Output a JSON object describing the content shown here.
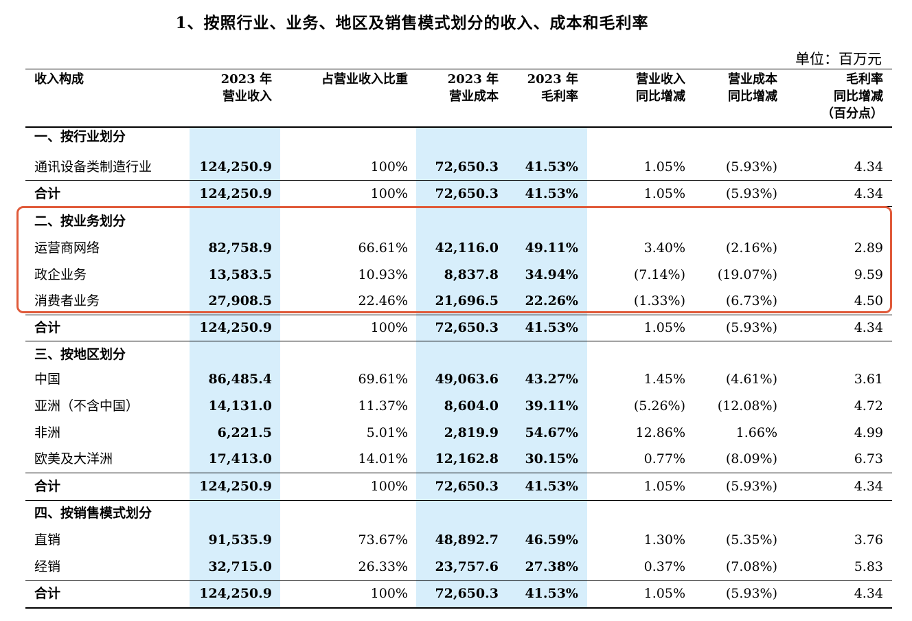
{
  "title": "1、按照行业、业务、地区及销售模式划分的收入、成本和毛利率",
  "unit": "单位：百万元",
  "headers": {
    "composition": "收入构成",
    "revenue": [
      "2023 年",
      "营业收入"
    ],
    "share": "占营业收入比重",
    "cost": [
      "2023 年",
      "营业成本"
    ],
    "margin": [
      "2023 年",
      "毛利率"
    ],
    "rev_yoy": [
      "营业收入",
      "同比增减"
    ],
    "cost_yoy": [
      "营业成本",
      "同比增减"
    ],
    "margin_yoy": [
      "毛利率",
      "同比增减",
      "（百分点）"
    ]
  },
  "rows": [
    {
      "type": "section",
      "label": "一、按行业划分"
    },
    {
      "type": "data",
      "label": "通讯设备类制造行业",
      "revenue": "124,250.9",
      "share": "100%",
      "cost": "72,650.3",
      "margin": "41.53%",
      "rev_yoy": "1.05%",
      "cost_yoy": "(5.93%)",
      "margin_yoy": "4.34"
    },
    {
      "type": "total",
      "label": "合计",
      "revenue": "124,250.9",
      "share": "100%",
      "cost": "72,650.3",
      "margin": "41.53%",
      "rev_yoy": "1.05%",
      "cost_yoy": "(5.93%)",
      "margin_yoy": "4.34"
    },
    {
      "type": "section",
      "label": "二、按业务划分"
    },
    {
      "type": "data",
      "label": "运营商网络",
      "revenue": "82,758.9",
      "share": "66.61%",
      "cost": "42,116.0",
      "margin": "49.11%",
      "rev_yoy": "3.40%",
      "cost_yoy": "(2.16%)",
      "margin_yoy": "2.89"
    },
    {
      "type": "data",
      "label": "政企业务",
      "revenue": "13,583.5",
      "share": "10.93%",
      "cost": "8,837.8",
      "margin": "34.94%",
      "rev_yoy": "(7.14%)",
      "cost_yoy": "(19.07%)",
      "margin_yoy": "9.59"
    },
    {
      "type": "data",
      "label": "消费者业务",
      "revenue": "27,908.5",
      "share": "22.46%",
      "cost": "21,696.5",
      "margin": "22.26%",
      "rev_yoy": "(1.33%)",
      "cost_yoy": "(6.73%)",
      "margin_yoy": "4.50"
    },
    {
      "type": "total",
      "label": "合计",
      "revenue": "124,250.9",
      "share": "100%",
      "cost": "72,650.3",
      "margin": "41.53%",
      "rev_yoy": "1.05%",
      "cost_yoy": "(5.93%)",
      "margin_yoy": "4.34"
    },
    {
      "type": "section",
      "label": "三、按地区划分"
    },
    {
      "type": "data",
      "label": "中国",
      "revenue": "86,485.4",
      "share": "69.61%",
      "cost": "49,063.6",
      "margin": "43.27%",
      "rev_yoy": "1.45%",
      "cost_yoy": "(4.61%)",
      "margin_yoy": "3.61"
    },
    {
      "type": "data",
      "label": "亚洲（不含中国）",
      "revenue": "14,131.0",
      "share": "11.37%",
      "cost": "8,604.0",
      "margin": "39.11%",
      "rev_yoy": "(5.26%)",
      "cost_yoy": "(12.08%)",
      "margin_yoy": "4.72"
    },
    {
      "type": "data",
      "label": "非洲",
      "revenue": "6,221.5",
      "share": "5.01%",
      "cost": "2,819.9",
      "margin": "54.67%",
      "rev_yoy": "12.86%",
      "cost_yoy": "1.66%",
      "margin_yoy": "4.99"
    },
    {
      "type": "data",
      "label": "欧美及大洋洲",
      "revenue": "17,413.0",
      "share": "14.01%",
      "cost": "12,162.8",
      "margin": "30.15%",
      "rev_yoy": "0.77%",
      "cost_yoy": "(8.09%)",
      "margin_yoy": "6.73"
    },
    {
      "type": "total",
      "label": "合计",
      "revenue": "124,250.9",
      "share": "100%",
      "cost": "72,650.3",
      "margin": "41.53%",
      "rev_yoy": "1.05%",
      "cost_yoy": "(5.93%)",
      "margin_yoy": "4.34"
    },
    {
      "type": "section",
      "label": "四、按销售模式划分"
    },
    {
      "type": "data",
      "label": "直销",
      "revenue": "91,535.9",
      "share": "73.67%",
      "cost": "48,892.7",
      "margin": "46.59%",
      "rev_yoy": "1.30%",
      "cost_yoy": "(5.35%)",
      "margin_yoy": "3.76"
    },
    {
      "type": "data",
      "label": "经销",
      "revenue": "32,715.0",
      "share": "26.33%",
      "cost": "23,757.6",
      "margin": "27.38%",
      "rev_yoy": "0.37%",
      "cost_yoy": "(7.08%)",
      "margin_yoy": "5.83"
    },
    {
      "type": "total",
      "label": "合计",
      "revenue": "124,250.9",
      "share": "100%",
      "cost": "72,650.3",
      "margin": "41.53%",
      "rev_yoy": "1.05%",
      "cost_yoy": "(5.93%)",
      "margin_yoy": "4.34"
    }
  ],
  "colors": {
    "highlight": "#d7eefb",
    "annotation_box": "#e05a3a"
  }
}
